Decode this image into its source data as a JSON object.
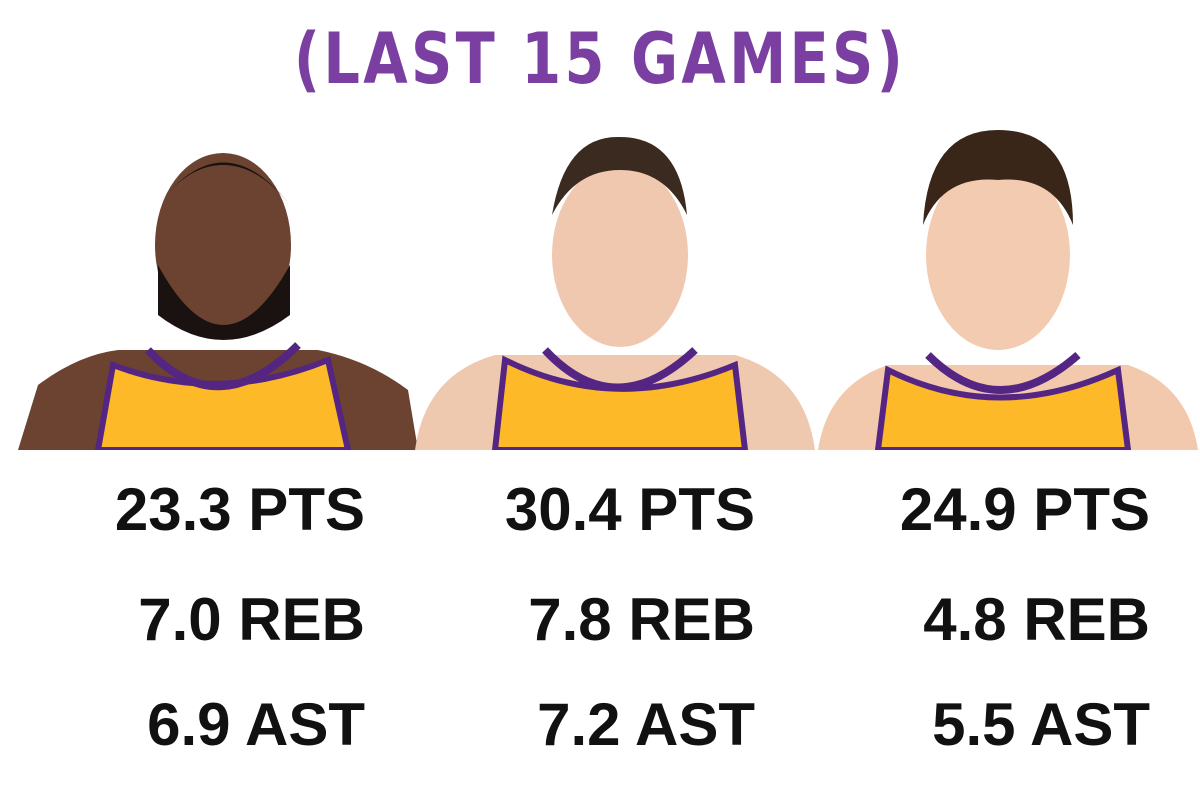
{
  "header": {
    "title": "(LAST 15 GAMES)"
  },
  "players": [
    {
      "stats": [
        "23.3 PTS",
        "7.0 REB",
        "6.9 AST"
      ]
    },
    {
      "stats": [
        "30.4 PTS",
        "7.8 REB",
        "7.2 AST"
      ]
    },
    {
      "stats": [
        "24.9 PTS",
        "4.8 REB",
        "5.5 AST"
      ]
    }
  ]
}
